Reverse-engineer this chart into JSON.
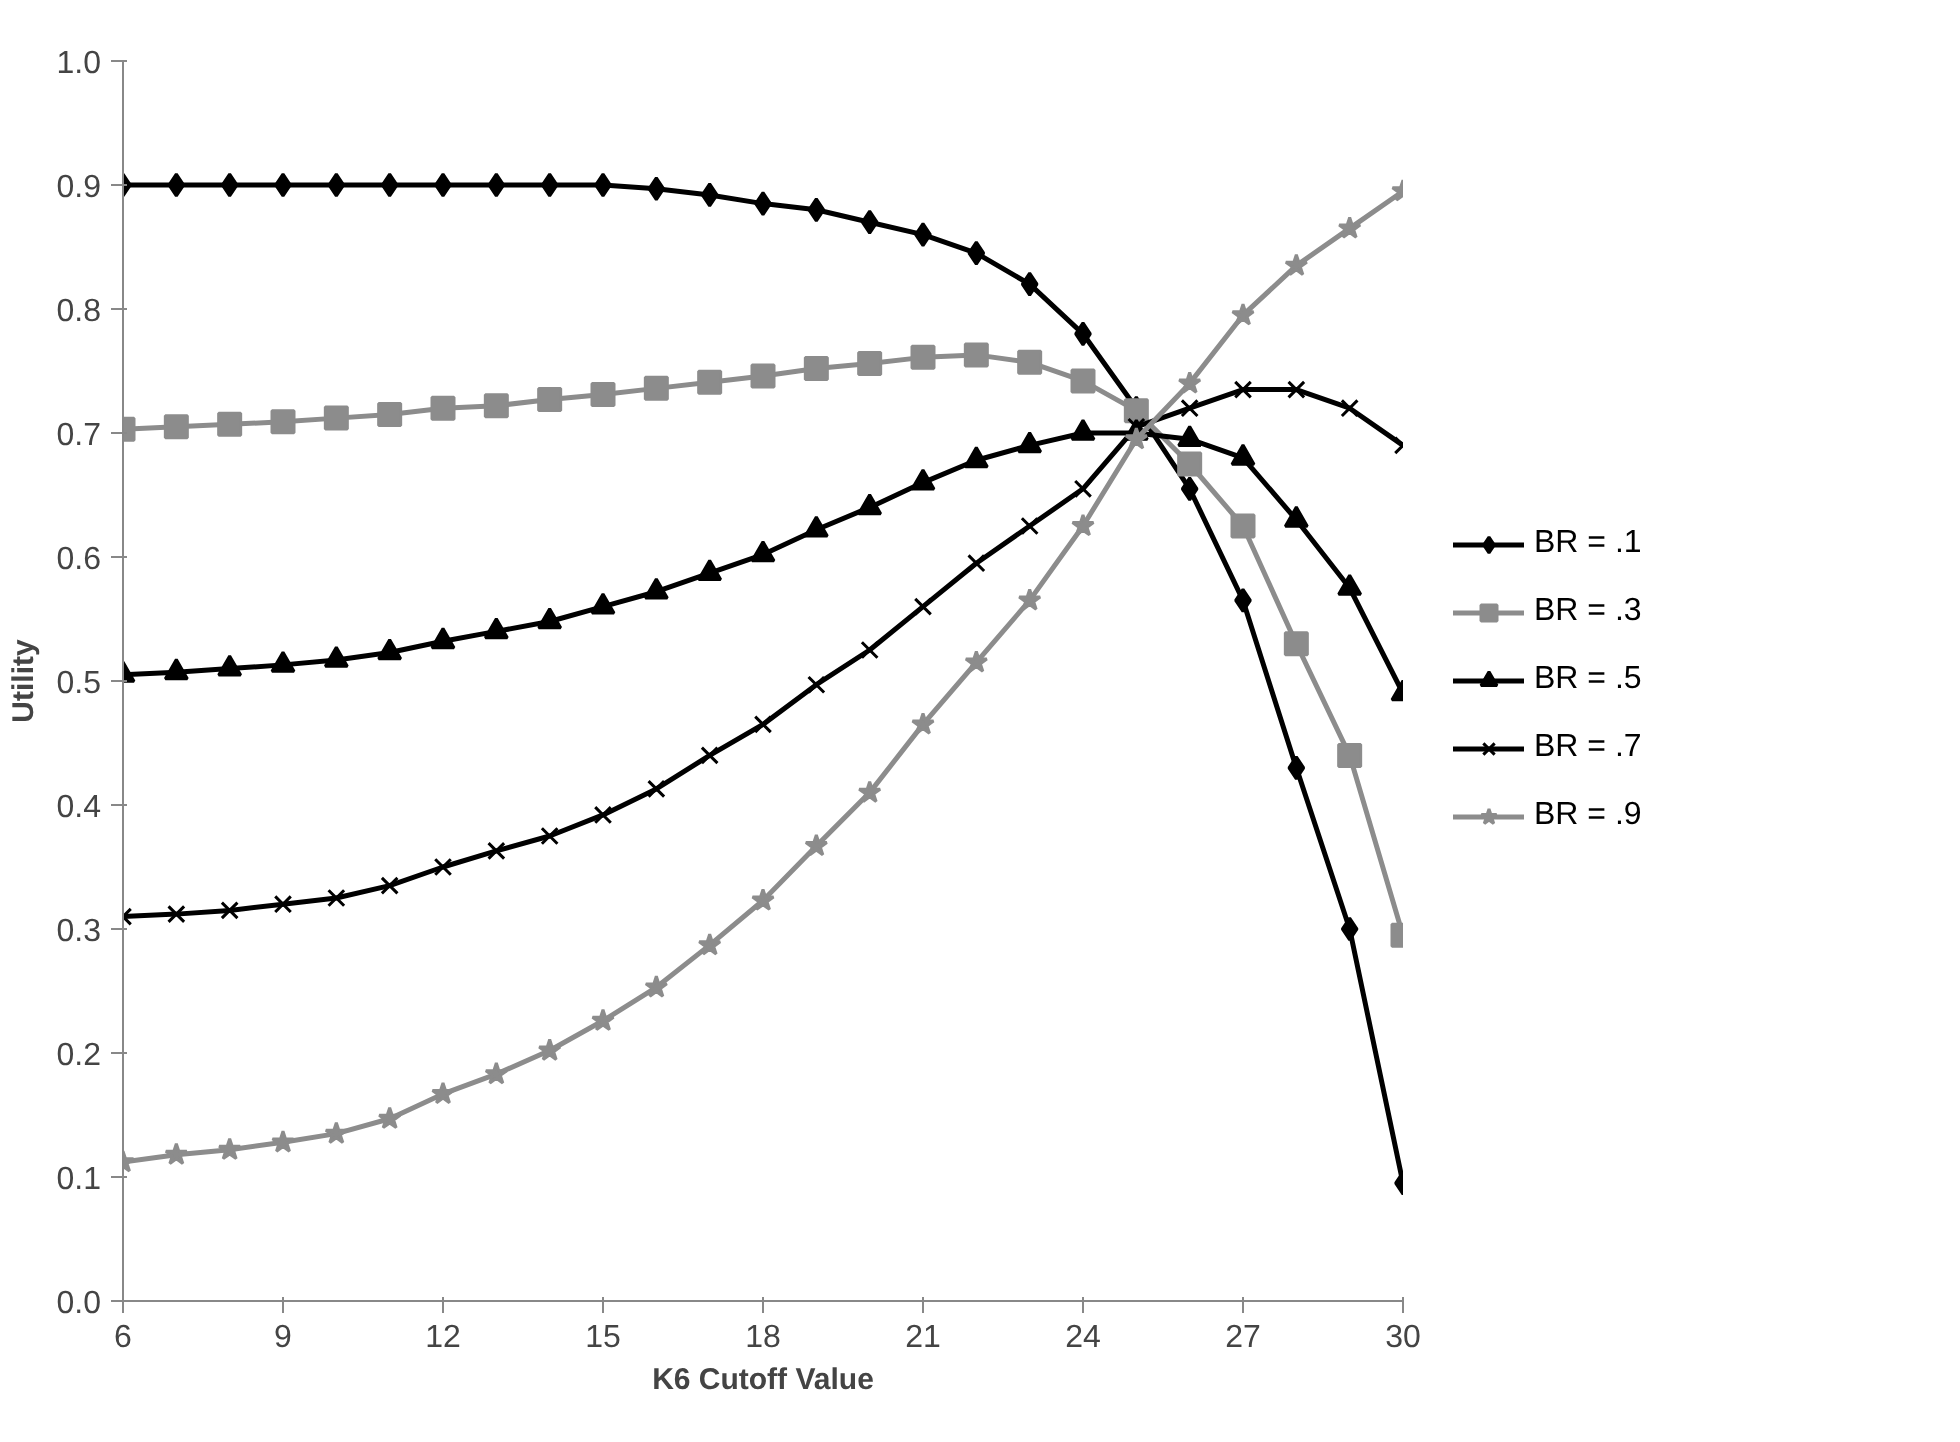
{
  "chart_data": {
    "type": "line",
    "xlabel": "K6 Cutoff Value",
    "ylabel": "Utility",
    "x": [
      6,
      7,
      8,
      9,
      10,
      11,
      12,
      13,
      14,
      15,
      16,
      17,
      18,
      19,
      20,
      21,
      22,
      23,
      24,
      25,
      26,
      27,
      28,
      29,
      30
    ],
    "xlim": [
      6,
      30
    ],
    "xticks": [
      6,
      9,
      12,
      15,
      18,
      21,
      24,
      27,
      30
    ],
    "ylim": [
      0,
      1
    ],
    "yticks": [
      {
        "value": 0,
        "label": "0.0"
      },
      {
        "value": 0.1,
        "label": "0.1"
      },
      {
        "value": 0.2,
        "label": "0.2"
      },
      {
        "value": 0.3,
        "label": "0.3"
      },
      {
        "value": 0.4,
        "label": "0.4"
      },
      {
        "value": 0.5,
        "label": "0.5"
      },
      {
        "value": 0.6,
        "label": "0.6"
      },
      {
        "value": 0.7,
        "label": "0.7"
      },
      {
        "value": 0.8,
        "label": "0.8"
      },
      {
        "value": 0.9,
        "label": "0.9"
      },
      {
        "value": 1,
        "label": "1.0"
      }
    ],
    "grid": false,
    "legend": "right",
    "line_style": "solid",
    "series": [
      {
        "name": "BR = .1",
        "color": "#000000",
        "marker": "diamond",
        "values": [
          0.9,
          0.9,
          0.9,
          0.9,
          0.9,
          0.9,
          0.9,
          0.9,
          0.9,
          0.9,
          0.897,
          0.892,
          0.885,
          0.88,
          0.87,
          0.86,
          0.845,
          0.82,
          0.78,
          0.72,
          0.655,
          0.565,
          0.43,
          0.3,
          0.095
        ]
      },
      {
        "name": "BR = .3",
        "color": "#8c8c8c",
        "marker": "square",
        "values": [
          0.703,
          0.705,
          0.707,
          0.709,
          0.712,
          0.715,
          0.72,
          0.722,
          0.727,
          0.731,
          0.736,
          0.741,
          0.746,
          0.752,
          0.756,
          0.761,
          0.763,
          0.757,
          0.742,
          0.718,
          0.675,
          0.625,
          0.53,
          0.44,
          0.295
        ]
      },
      {
        "name": "BR = .5",
        "color": "#000000",
        "marker": "triangle",
        "values": [
          0.505,
          0.507,
          0.51,
          0.513,
          0.517,
          0.523,
          0.532,
          0.54,
          0.548,
          0.56,
          0.572,
          0.587,
          0.602,
          0.622,
          0.64,
          0.66,
          0.678,
          0.69,
          0.7,
          0.7,
          0.695,
          0.68,
          0.63,
          0.575,
          0.49
        ]
      },
      {
        "name": "BR = .7",
        "color": "#000000",
        "marker": "cross",
        "values": [
          0.31,
          0.312,
          0.315,
          0.32,
          0.325,
          0.335,
          0.35,
          0.363,
          0.375,
          0.392,
          0.413,
          0.44,
          0.465,
          0.497,
          0.525,
          0.56,
          0.595,
          0.625,
          0.655,
          0.705,
          0.72,
          0.735,
          0.735,
          0.72,
          0.69
        ]
      },
      {
        "name": "BR = .9",
        "color": "#8c8c8c",
        "marker": "star",
        "values": [
          0.112,
          0.118,
          0.122,
          0.128,
          0.135,
          0.147,
          0.167,
          0.183,
          0.202,
          0.226,
          0.253,
          0.287,
          0.323,
          0.367,
          0.41,
          0.465,
          0.515,
          0.565,
          0.625,
          0.695,
          0.74,
          0.795,
          0.835,
          0.865,
          0.895
        ]
      }
    ]
  }
}
